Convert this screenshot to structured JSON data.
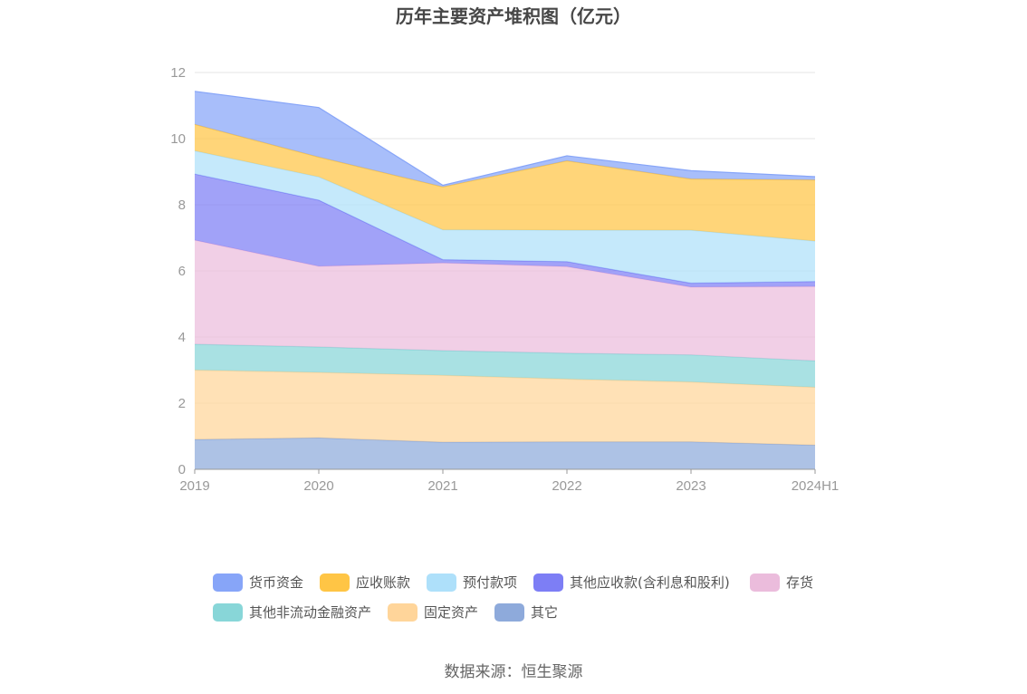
{
  "chart_data": {
    "type": "area",
    "stacked": true,
    "title": "历年主要资产堆积图（亿元）",
    "source": "数据来源：恒生聚源",
    "categories": [
      "2019",
      "2020",
      "2021",
      "2022",
      "2023",
      "2024H1"
    ],
    "y_ticks": [
      "0",
      "2",
      "4",
      "6",
      "8",
      "10",
      "12"
    ],
    "ylim": [
      0,
      12
    ],
    "grid": true,
    "legend_position": "bottom",
    "series": [
      {
        "name": "其它",
        "color": "#8eaadb",
        "values": [
          0.9,
          0.95,
          0.82,
          0.83,
          0.83,
          0.73
        ]
      },
      {
        "name": "固定资产",
        "color": "#ffd59a",
        "values": [
          2.1,
          1.98,
          2.02,
          1.9,
          1.81,
          1.75
        ]
      },
      {
        "name": "其他非流动金融资产",
        "color": "#88d6d8",
        "values": [
          0.78,
          0.77,
          0.75,
          0.78,
          0.82,
          0.8
        ]
      },
      {
        "name": "存货",
        "color": "#ebbcdc",
        "values": [
          3.15,
          2.44,
          2.65,
          2.62,
          2.05,
          2.25
        ]
      },
      {
        "name": "其他应收款(含利息和股利)",
        "color": "#7d7ef5",
        "values": [
          2.0,
          2.0,
          0.1,
          0.15,
          0.12,
          0.15
        ]
      },
      {
        "name": "预付款项",
        "color": "#aee0fa",
        "values": [
          0.7,
          0.7,
          0.9,
          0.95,
          1.6,
          1.22
        ]
      },
      {
        "name": "应收账款",
        "color": "#ffc545",
        "values": [
          0.8,
          0.6,
          1.3,
          2.1,
          1.55,
          1.85
        ]
      },
      {
        "name": "货币资金",
        "color": "#87a5f8",
        "values": [
          1.0,
          1.5,
          0.05,
          0.15,
          0.25,
          0.1
        ]
      }
    ]
  }
}
